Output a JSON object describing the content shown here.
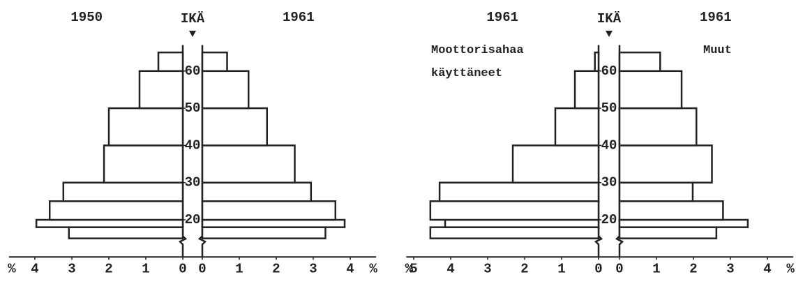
{
  "chart_data": [
    {
      "type": "pyramid",
      "axis_label": "IKÄ",
      "unit": "%",
      "age_bins": [
        15,
        18,
        20,
        25,
        30,
        40,
        50,
        60,
        65
      ],
      "ylim": [
        10,
        67
      ],
      "yticks": [
        20,
        30,
        40,
        50,
        60
      ],
      "left": {
        "title": "1950",
        "values": [
          3.08,
          3.96,
          3.6,
          3.23,
          2.13,
          2.0,
          1.17,
          0.66
        ],
        "xlim": [
          0,
          4.7
        ],
        "xticks": [
          0,
          1,
          2,
          3,
          4
        ]
      },
      "right": {
        "title": "1961",
        "values": [
          3.33,
          3.85,
          3.6,
          2.94,
          2.5,
          1.75,
          1.25,
          0.67
        ],
        "xlim": [
          0,
          4.7
        ],
        "xticks": [
          0,
          1,
          2,
          3,
          4
        ]
      }
    },
    {
      "type": "pyramid",
      "axis_label": "IKÄ",
      "unit": "%",
      "age_bins": [
        15,
        18,
        20,
        25,
        30,
        40,
        50,
        60,
        65
      ],
      "ylim": [
        10,
        67
      ],
      "yticks": [
        20,
        30,
        40,
        50,
        60
      ],
      "left": {
        "title": "1961",
        "name": "Moottorisahaa käyttäneet",
        "values": [
          4.55,
          4.15,
          4.55,
          4.3,
          2.32,
          1.17,
          0.64,
          0.1
        ],
        "xlim": [
          0,
          5.2
        ],
        "xticks": [
          0,
          1,
          2,
          3,
          4,
          5
        ]
      },
      "right": {
        "title": "1961",
        "name": "Muut",
        "values": [
          2.62,
          3.47,
          2.8,
          1.98,
          2.5,
          2.08,
          1.68,
          1.1
        ],
        "xlim": [
          0,
          4.7
        ],
        "xticks": [
          0,
          1,
          2,
          3,
          4
        ]
      }
    }
  ]
}
